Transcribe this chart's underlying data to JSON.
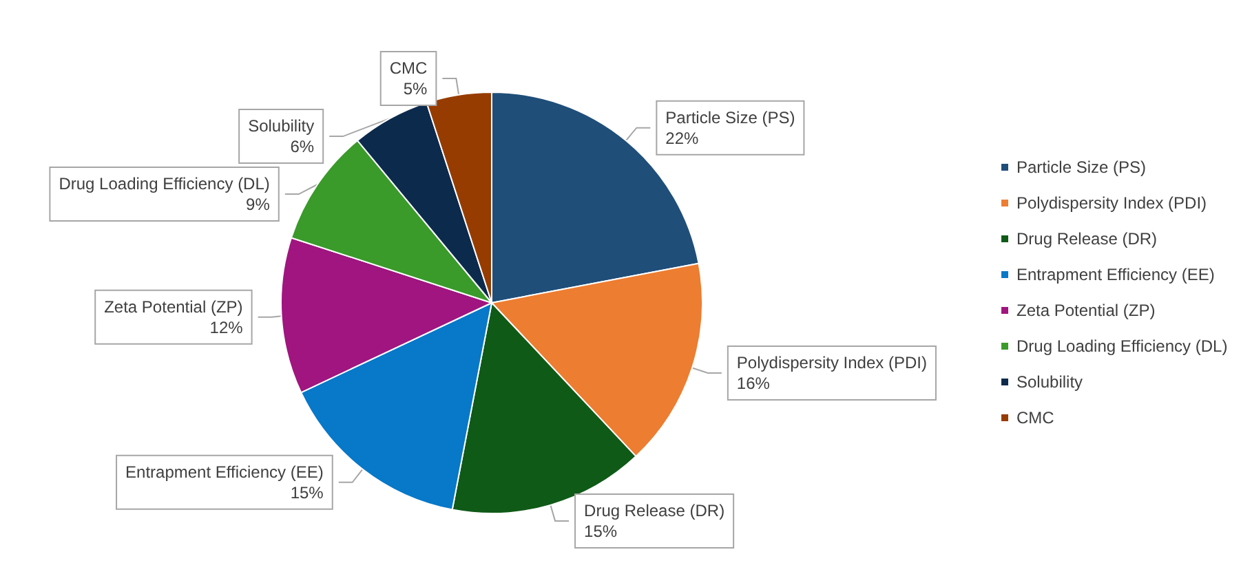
{
  "chart_data": {
    "type": "pie",
    "categories": [
      "Particle Size (PS)",
      "Polydispersity Index (PDI)",
      "Drug Release (DR)",
      "Entrapment Efficiency (EE)",
      "Zeta Potential (ZP)",
      "Drug Loading Efficiency (DL)",
      "Solubility",
      "CMC"
    ],
    "values": [
      22,
      16,
      15,
      15,
      12,
      9,
      6,
      5
    ],
    "value_labels": [
      "22%",
      "16%",
      "15%",
      "15%",
      "12%",
      "9%",
      "6%",
      "5%"
    ],
    "colors": [
      "#1f4e79",
      "#ed7d31",
      "#0f5a17",
      "#0878c8",
      "#a0157f",
      "#3a9a2a",
      "#0c2a4c",
      "#963c00"
    ],
    "legend": "right"
  }
}
